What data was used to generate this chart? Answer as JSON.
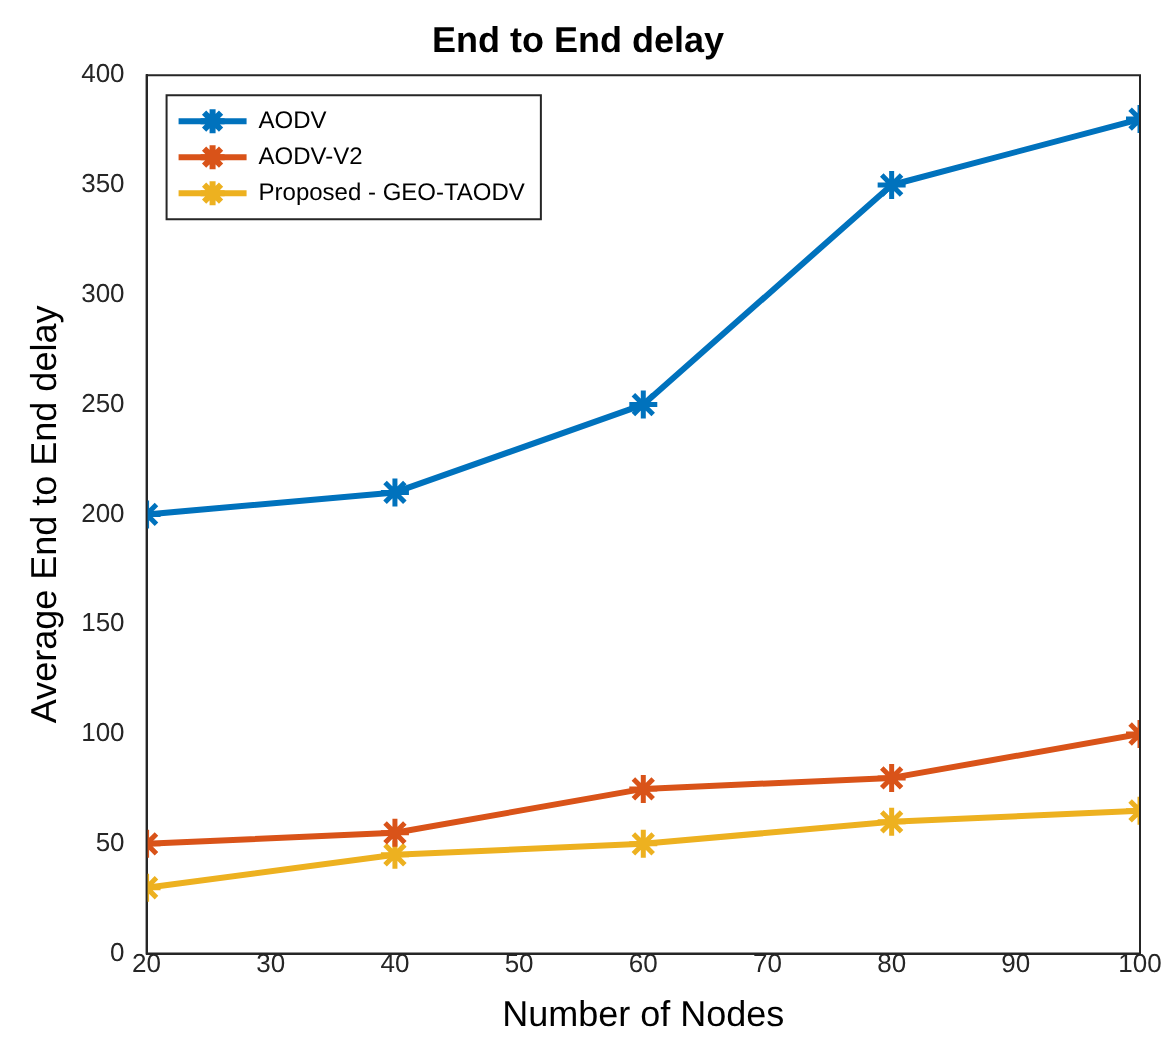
{
  "chart_data": {
    "type": "line",
    "title": "End to End delay",
    "xlabel": "Number of Nodes",
    "ylabel": "Average End to End delay",
    "x": [
      20,
      40,
      60,
      80,
      100
    ],
    "series": [
      {
        "name": "AODV",
        "color": "#0072bd",
        "values": [
          200,
          210,
          250,
          350,
          380
        ]
      },
      {
        "name": "AODV-V2",
        "color": "#d95319",
        "values": [
          50,
          55,
          75,
          80,
          100
        ]
      },
      {
        "name": "Proposed - GEO-TAODV",
        "color": "#edb120",
        "values": [
          30,
          45,
          50,
          60,
          65
        ]
      }
    ],
    "xlim": [
      20,
      100
    ],
    "xticks": [
      20,
      30,
      40,
      50,
      60,
      70,
      80,
      90,
      100
    ],
    "ylim": [
      0,
      400
    ],
    "yticks": [
      0,
      50,
      100,
      150,
      200,
      250,
      300,
      350,
      400
    ],
    "grid": false,
    "legend": "top left",
    "marker": "cross",
    "line_style": "solid"
  }
}
